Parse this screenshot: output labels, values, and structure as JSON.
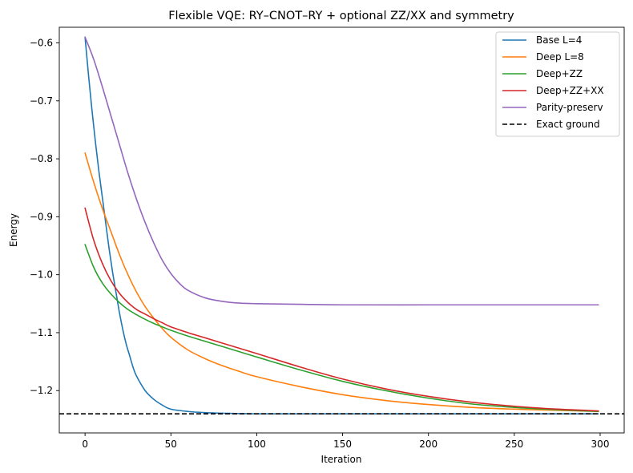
{
  "chart_data": {
    "type": "line",
    "title": "Flexible VQE: RY–CNOT–RY + optional ZZ/XX and symmetry",
    "xlabel": "Iteration",
    "ylabel": "Energy",
    "xlim": [
      -15,
      314
    ],
    "ylim": [
      -1.273,
      -0.573
    ],
    "xticks": [
      0,
      50,
      100,
      150,
      200,
      250,
      300
    ],
    "yticks": [
      -0.6,
      -0.7,
      -0.8,
      -0.9,
      -1.0,
      -1.1,
      -1.2
    ],
    "xtick_labels": [
      "0",
      "50",
      "100",
      "150",
      "200",
      "250",
      "300"
    ],
    "ytick_labels": [
      "−0.6",
      "−0.7",
      "−0.8",
      "−0.9",
      "−1.0",
      "−1.1",
      "−1.2"
    ],
    "legend_position": "top-right",
    "series": [
      {
        "name": "Base L=4",
        "color": "#1f77b4",
        "x": [
          0,
          2,
          4,
          6,
          8,
          10,
          12,
          14,
          16,
          18,
          20,
          22,
          24,
          26,
          28,
          30,
          35,
          40,
          45,
          50,
          60,
          70,
          80,
          100,
          150,
          200,
          250,
          299
        ],
        "values": [
          -0.59,
          -0.655,
          -0.715,
          -0.77,
          -0.82,
          -0.865,
          -0.91,
          -0.955,
          -0.995,
          -1.03,
          -1.065,
          -1.095,
          -1.12,
          -1.14,
          -1.16,
          -1.175,
          -1.2,
          -1.215,
          -1.225,
          -1.232,
          -1.236,
          -1.238,
          -1.239,
          -1.24,
          -1.24,
          -1.24,
          -1.24,
          -1.24
        ]
      },
      {
        "name": "Deep L=8",
        "color": "#ff7f0e",
        "x": [
          0,
          5,
          10,
          15,
          20,
          25,
          30,
          35,
          40,
          45,
          50,
          60,
          70,
          80,
          90,
          100,
          125,
          150,
          175,
          200,
          225,
          250,
          275,
          299
        ],
        "values": [
          -0.79,
          -0.84,
          -0.885,
          -0.925,
          -0.965,
          -1.0,
          -1.03,
          -1.055,
          -1.075,
          -1.093,
          -1.108,
          -1.13,
          -1.145,
          -1.157,
          -1.167,
          -1.176,
          -1.193,
          -1.207,
          -1.217,
          -1.224,
          -1.229,
          -1.232,
          -1.234,
          -1.236
        ]
      },
      {
        "name": "Deep+ZZ",
        "color": "#2ca02c",
        "x": [
          0,
          5,
          10,
          15,
          20,
          25,
          30,
          35,
          40,
          45,
          50,
          60,
          70,
          80,
          100,
          125,
          150,
          175,
          200,
          225,
          250,
          275,
          299
        ],
        "values": [
          -0.948,
          -0.987,
          -1.014,
          -1.033,
          -1.048,
          -1.06,
          -1.069,
          -1.077,
          -1.084,
          -1.09,
          -1.096,
          -1.106,
          -1.115,
          -1.124,
          -1.142,
          -1.164,
          -1.184,
          -1.2,
          -1.213,
          -1.223,
          -1.229,
          -1.233,
          -1.236
        ]
      },
      {
        "name": "Deep+ZZ+XX",
        "color": "#d62728",
        "x": [
          0,
          5,
          10,
          15,
          20,
          25,
          30,
          35,
          40,
          45,
          50,
          60,
          70,
          80,
          100,
          125,
          150,
          175,
          200,
          225,
          250,
          275,
          299
        ],
        "values": [
          -0.885,
          -0.94,
          -0.98,
          -1.01,
          -1.032,
          -1.048,
          -1.06,
          -1.068,
          -1.076,
          -1.083,
          -1.09,
          -1.1,
          -1.109,
          -1.118,
          -1.136,
          -1.159,
          -1.18,
          -1.197,
          -1.21,
          -1.22,
          -1.227,
          -1.232,
          -1.235
        ]
      },
      {
        "name": "Parity-preserv",
        "color": "#9467bd",
        "x": [
          0,
          5,
          10,
          15,
          20,
          25,
          30,
          35,
          40,
          45,
          50,
          55,
          60,
          70,
          80,
          90,
          100,
          125,
          150,
          200,
          250,
          299
        ],
        "values": [
          -0.59,
          -0.628,
          -0.675,
          -0.725,
          -0.775,
          -0.825,
          -0.87,
          -0.91,
          -0.945,
          -0.975,
          -0.998,
          -1.015,
          -1.027,
          -1.04,
          -1.046,
          -1.049,
          -1.05,
          -1.051,
          -1.052,
          -1.052,
          -1.052,
          -1.052
        ]
      }
    ],
    "reference_line": {
      "name": "Exact ground",
      "color": "#000000",
      "y": -1.24,
      "style": "dashed"
    }
  }
}
